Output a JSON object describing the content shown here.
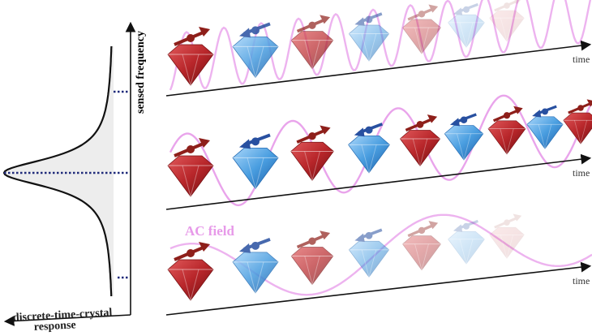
{
  "left_panel": {
    "y_axis_label": "sensed frequency",
    "x_axis_label_line1": "discrete-time-crystal",
    "x_axis_label_line2": "response"
  },
  "ac_field_label": "AC field",
  "rows": [
    {
      "time_label": "time",
      "field_frequency": "high",
      "fade": true
    },
    {
      "time_label": "time",
      "field_frequency": "resonant",
      "fade": false
    },
    {
      "time_label": "time",
      "field_frequency": "low",
      "fade": true
    }
  ],
  "colors": {
    "spin_up_crystal": "#b8262a",
    "spin_down_crystal": "#4a9ee0",
    "ac_field": "#e79ae9",
    "dotted_line": "#1f2a7a",
    "response_fill": "#ededed"
  }
}
